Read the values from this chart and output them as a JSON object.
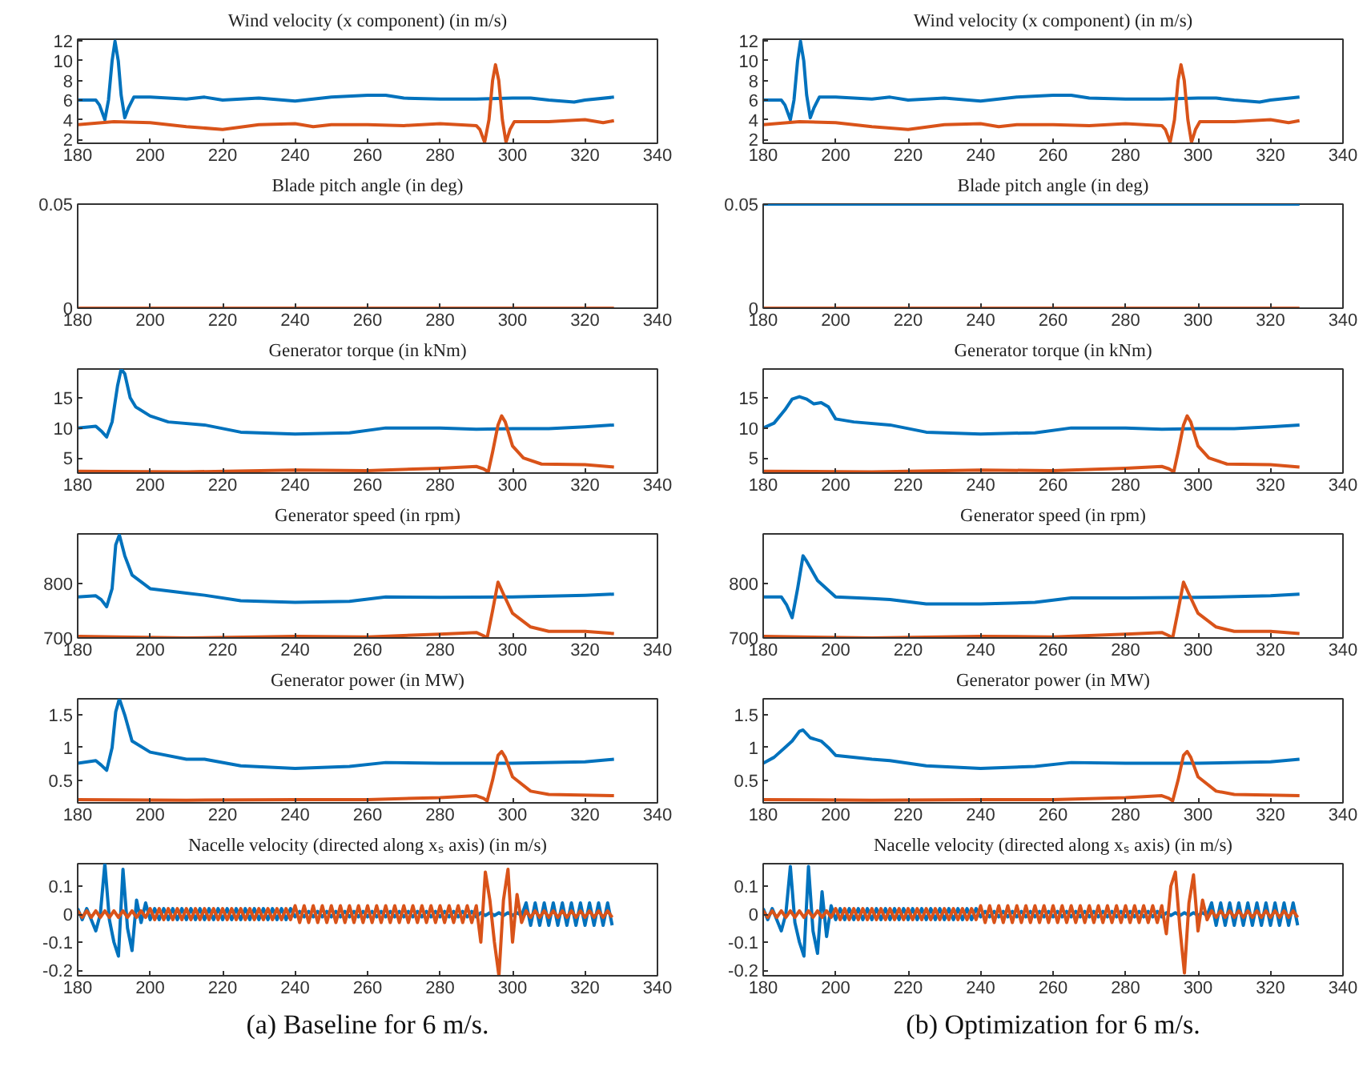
{
  "chart_data": [
    {
      "type": "line",
      "title": "Wind velocity (x component) (in m/s)",
      "xlim": [
        180,
        340
      ],
      "xticks": [
        180,
        200,
        220,
        240,
        260,
        280,
        300,
        320,
        340
      ],
      "ylim": [
        1.6,
        12.2
      ],
      "yticks": [
        2,
        4,
        6,
        8,
        10,
        12
      ],
      "grid": false,
      "series": [
        {
          "color": "#0072bd",
          "x": [
            180,
            185,
            186,
            187.5,
            188.5,
            189.5,
            190.3,
            191.2,
            192,
            193,
            194,
            195.5,
            200,
            210,
            215,
            220,
            230,
            240,
            250,
            260,
            265,
            270,
            280,
            290,
            300,
            305,
            310,
            317,
            320,
            328
          ],
          "values": [
            6.0,
            6.0,
            5.5,
            4.0,
            6.0,
            10.0,
            12.0,
            10.0,
            6.5,
            4.2,
            5.2,
            6.3,
            6.3,
            6.1,
            6.3,
            6.0,
            6.2,
            5.9,
            6.3,
            6.5,
            6.5,
            6.2,
            6.1,
            6.1,
            6.2,
            6.2,
            6.0,
            5.8,
            6.0,
            6.3
          ]
        },
        {
          "color": "#d95319",
          "x": [
            180,
            190,
            200,
            210,
            220,
            230,
            240,
            245,
            250,
            260,
            270,
            280,
            290,
            291,
            292.3,
            293.5,
            294.5,
            295.3,
            296.2,
            297.2,
            298.2,
            299.3,
            300.5,
            310,
            320,
            325,
            328
          ],
          "values": [
            3.5,
            3.8,
            3.7,
            3.3,
            3.0,
            3.5,
            3.6,
            3.3,
            3.5,
            3.5,
            3.4,
            3.6,
            3.4,
            3.0,
            1.7,
            4.0,
            8.0,
            9.6,
            8.0,
            4.0,
            1.7,
            3.0,
            3.8,
            3.8,
            4.0,
            3.7,
            3.9
          ]
        }
      ]
    },
    {
      "type": "line",
      "title": "Wind velocity (x component) (in m/s)",
      "xlim": [
        180,
        340
      ],
      "xticks": [
        180,
        200,
        220,
        240,
        260,
        280,
        300,
        320,
        340
      ],
      "ylim": [
        1.6,
        12.2
      ],
      "yticks": [
        2,
        4,
        6,
        8,
        10,
        12
      ],
      "grid": false,
      "series": [
        {
          "color": "#0072bd",
          "x": [
            180,
            185,
            186,
            187.5,
            188.5,
            189.5,
            190.3,
            191.2,
            192,
            193,
            194,
            195.5,
            200,
            210,
            215,
            220,
            230,
            240,
            250,
            260,
            265,
            270,
            280,
            290,
            300,
            305,
            310,
            317,
            320,
            328
          ],
          "values": [
            6.0,
            6.0,
            5.5,
            4.0,
            6.0,
            10.0,
            12.0,
            10.0,
            6.5,
            4.2,
            5.2,
            6.3,
            6.3,
            6.1,
            6.3,
            6.0,
            6.2,
            5.9,
            6.3,
            6.5,
            6.5,
            6.2,
            6.1,
            6.1,
            6.2,
            6.2,
            6.0,
            5.8,
            6.0,
            6.3
          ]
        },
        {
          "color": "#d95319",
          "x": [
            180,
            190,
            200,
            210,
            220,
            230,
            240,
            245,
            250,
            260,
            270,
            280,
            290,
            291,
            292.3,
            293.5,
            294.5,
            295.3,
            296.2,
            297.2,
            298.2,
            299.3,
            300.5,
            310,
            320,
            325,
            328
          ],
          "values": [
            3.5,
            3.8,
            3.7,
            3.3,
            3.0,
            3.5,
            3.6,
            3.3,
            3.5,
            3.5,
            3.4,
            3.6,
            3.4,
            3.0,
            1.7,
            4.0,
            8.0,
            9.6,
            8.0,
            4.0,
            1.7,
            3.0,
            3.8,
            3.8,
            4.0,
            3.7,
            3.9
          ]
        }
      ]
    },
    {
      "type": "line",
      "title": "Blade pitch angle (in deg)",
      "xlim": [
        180,
        340
      ],
      "xticks": [
        180,
        200,
        220,
        240,
        260,
        280,
        300,
        320,
        340
      ],
      "ylim": [
        0,
        0.05
      ],
      "yticks": [
        0,
        0.05
      ],
      "grid": false,
      "series": [
        {
          "color": "#d95319",
          "x": [
            180,
            328
          ],
          "values": [
            0,
            0
          ]
        }
      ]
    },
    {
      "type": "line",
      "title": "Blade pitch angle (in deg)",
      "xlim": [
        180,
        340
      ],
      "xticks": [
        180,
        200,
        220,
        240,
        260,
        280,
        300,
        320,
        340
      ],
      "ylim": [
        0,
        0.05
      ],
      "yticks": [
        0,
        0.05
      ],
      "grid": false,
      "series": [
        {
          "color": "#0072bd",
          "x": [
            180,
            328
          ],
          "values": [
            0.05,
            0.05
          ]
        },
        {
          "color": "#d95319",
          "x": [
            180,
            328
          ],
          "values": [
            0,
            0
          ]
        }
      ]
    },
    {
      "type": "line",
      "title": "Generator torque (in kNm)",
      "xlim": [
        180,
        340
      ],
      "xticks": [
        180,
        200,
        220,
        240,
        260,
        280,
        300,
        320,
        340
      ],
      "ylim": [
        2.5,
        19.8
      ],
      "yticks": [
        5,
        10,
        15
      ],
      "grid": false,
      "series": [
        {
          "color": "#0072bd",
          "x": [
            180,
            185,
            186.5,
            188,
            189.5,
            191,
            192,
            193,
            194.5,
            196,
            200,
            205,
            215,
            225,
            240,
            255,
            265,
            280,
            290,
            300,
            310,
            320,
            328
          ],
          "values": [
            10,
            10.3,
            9.5,
            8.5,
            11,
            17,
            19.8,
            19,
            15,
            13.5,
            12,
            11,
            10.5,
            9.3,
            9,
            9.2,
            10,
            10,
            9.8,
            9.9,
            9.9,
            10.2,
            10.5
          ]
        },
        {
          "color": "#d95319",
          "x": [
            180,
            210,
            240,
            260,
            280,
            290,
            292,
            293.3,
            294.5,
            296,
            297,
            298,
            300,
            303,
            308,
            320,
            328
          ],
          "values": [
            2.8,
            2.7,
            3,
            2.9,
            3.3,
            3.6,
            3.2,
            2.7,
            6,
            10.5,
            12,
            11,
            7,
            5,
            4,
            3.9,
            3.5
          ]
        }
      ]
    },
    {
      "type": "line",
      "title": "Generator torque (in kNm)",
      "xlim": [
        180,
        340
      ],
      "xticks": [
        180,
        200,
        220,
        240,
        260,
        280,
        300,
        320,
        340
      ],
      "ylim": [
        2.5,
        19.8
      ],
      "yticks": [
        5,
        10,
        15
      ],
      "grid": false,
      "series": [
        {
          "color": "#0072bd",
          "x": [
            180,
            183,
            186,
            188,
            190,
            192,
            194,
            196,
            198,
            200,
            205,
            215,
            225,
            240,
            255,
            265,
            280,
            290,
            300,
            310,
            320,
            328
          ],
          "values": [
            10,
            10.8,
            13,
            14.8,
            15.2,
            14.8,
            14,
            14.2,
            13.5,
            11.5,
            11,
            10.5,
            9.3,
            9,
            9.2,
            10,
            10,
            9.8,
            9.9,
            9.9,
            10.2,
            10.5
          ]
        },
        {
          "color": "#d95319",
          "x": [
            180,
            210,
            240,
            260,
            280,
            290,
            292,
            293.3,
            294.5,
            296,
            297,
            298,
            300,
            303,
            308,
            320,
            328
          ],
          "values": [
            2.8,
            2.7,
            3,
            2.9,
            3.3,
            3.6,
            3.2,
            2.7,
            6,
            10.5,
            12,
            11,
            7,
            5,
            4,
            3.9,
            3.5
          ]
        }
      ]
    },
    {
      "type": "line",
      "title": "Generator speed (in rpm)",
      "xlim": [
        180,
        340
      ],
      "xticks": [
        180,
        200,
        220,
        240,
        260,
        280,
        300,
        320,
        340
      ],
      "ylim": [
        700,
        890
      ],
      "yticks": [
        700,
        800
      ],
      "grid": false,
      "series": [
        {
          "color": "#0072bd",
          "x": [
            180,
            185,
            186.5,
            188,
            189.5,
            190.5,
            191.5,
            193,
            195,
            200,
            210,
            215,
            225,
            240,
            255,
            265,
            280,
            300,
            320,
            328
          ],
          "values": [
            775,
            777,
            770,
            757,
            790,
            870,
            888,
            850,
            815,
            790,
            782,
            778,
            768,
            765,
            767,
            775,
            774,
            775,
            778,
            780
          ]
        },
        {
          "color": "#d95319",
          "x": [
            180,
            210,
            240,
            260,
            280,
            290,
            292,
            293,
            294.5,
            296,
            297.5,
            300,
            305,
            310,
            320,
            328
          ],
          "values": [
            703,
            700,
            703,
            702,
            707,
            710,
            704,
            700,
            750,
            802,
            780,
            745,
            720,
            712,
            712,
            708
          ]
        }
      ]
    },
    {
      "type": "line",
      "title": "Generator speed (in rpm)",
      "xlim": [
        180,
        340
      ],
      "xticks": [
        180,
        200,
        220,
        240,
        260,
        280,
        300,
        320,
        340
      ],
      "ylim": [
        700,
        890
      ],
      "yticks": [
        700,
        800
      ],
      "grid": false,
      "series": [
        {
          "color": "#0072bd",
          "x": [
            180,
            185,
            186.5,
            188,
            189.5,
            191,
            192,
            195,
            200,
            210,
            215,
            225,
            240,
            255,
            265,
            280,
            300,
            320,
            328
          ],
          "values": [
            775,
            775,
            760,
            737,
            790,
            850,
            840,
            805,
            775,
            772,
            770,
            762,
            762,
            765,
            773,
            773,
            774,
            777,
            780
          ]
        },
        {
          "color": "#d95319",
          "x": [
            180,
            210,
            240,
            260,
            280,
            290,
            292,
            293,
            294.5,
            296,
            297.5,
            300,
            305,
            310,
            320,
            328
          ],
          "values": [
            703,
            700,
            703,
            702,
            707,
            710,
            704,
            700,
            750,
            802,
            780,
            745,
            720,
            712,
            712,
            708
          ]
        }
      ]
    },
    {
      "type": "line",
      "title": "Generator power (in MW)",
      "xlim": [
        180,
        340
      ],
      "xticks": [
        180,
        200,
        220,
        240,
        260,
        280,
        300,
        320,
        340
      ],
      "ylim": [
        0.15,
        1.75
      ],
      "yticks": [
        0.5,
        1,
        1.5
      ],
      "grid": false,
      "series": [
        {
          "color": "#0072bd",
          "x": [
            180,
            185,
            186.5,
            188,
            189.5,
            190.5,
            191.5,
            193,
            195,
            200,
            210,
            215,
            225,
            240,
            255,
            265,
            280,
            300,
            320,
            328
          ],
          "values": [
            0.76,
            0.8,
            0.73,
            0.65,
            1.0,
            1.55,
            1.75,
            1.5,
            1.1,
            0.93,
            0.82,
            0.82,
            0.72,
            0.68,
            0.71,
            0.77,
            0.76,
            0.76,
            0.78,
            0.82
          ]
        },
        {
          "color": "#d95319",
          "x": [
            180,
            210,
            240,
            260,
            280,
            290,
            292,
            293,
            294.5,
            296,
            297,
            298,
            300,
            305,
            310,
            328
          ],
          "values": [
            0.2,
            0.19,
            0.2,
            0.2,
            0.23,
            0.26,
            0.22,
            0.18,
            0.5,
            0.88,
            0.94,
            0.85,
            0.55,
            0.33,
            0.28,
            0.26
          ]
        }
      ]
    },
    {
      "type": "line",
      "title": "Generator power (in MW)",
      "xlim": [
        180,
        340
      ],
      "xticks": [
        180,
        200,
        220,
        240,
        260,
        280,
        300,
        320,
        340
      ],
      "ylim": [
        0.15,
        1.75
      ],
      "yticks": [
        0.5,
        1,
        1.5
      ],
      "grid": false,
      "series": [
        {
          "color": "#0072bd",
          "x": [
            180,
            183,
            186,
            188,
            190,
            191,
            193,
            196,
            198,
            200,
            210,
            215,
            225,
            240,
            255,
            265,
            280,
            300,
            320,
            328
          ],
          "values": [
            0.76,
            0.85,
            1.0,
            1.1,
            1.25,
            1.27,
            1.15,
            1.1,
            1.0,
            0.88,
            0.82,
            0.8,
            0.72,
            0.68,
            0.71,
            0.77,
            0.76,
            0.76,
            0.78,
            0.82
          ]
        },
        {
          "color": "#d95319",
          "x": [
            180,
            210,
            240,
            260,
            280,
            290,
            292,
            293,
            294.5,
            296,
            297,
            298,
            300,
            305,
            310,
            328
          ],
          "values": [
            0.2,
            0.19,
            0.2,
            0.2,
            0.23,
            0.26,
            0.22,
            0.18,
            0.5,
            0.88,
            0.94,
            0.85,
            0.55,
            0.33,
            0.28,
            0.26
          ]
        }
      ]
    },
    {
      "type": "line",
      "title": "Nacelle velocity (directed along xₛ axis) (in m/s)",
      "annotations": [
        "(a) Baseline for 6 m/s."
      ],
      "xlim": [
        180,
        340
      ],
      "xticks": [
        180,
        200,
        220,
        240,
        260,
        280,
        300,
        320,
        340
      ],
      "ylim": [
        -0.22,
        0.18
      ],
      "yticks": [
        -0.2,
        -0.1,
        0,
        0.1
      ],
      "grid": false,
      "x": [
        180,
        181.25,
        182.5,
        183.75,
        185,
        186.25,
        187.5,
        188.75,
        190,
        191.25,
        192.5,
        193.75,
        195,
        196.25,
        197.5,
        198.75,
        200,
        201.25,
        202.5,
        203.75,
        205,
        206.25,
        207.5,
        208.75,
        210,
        211.25,
        212.5,
        213.75,
        215,
        216.25,
        217.5,
        218.75,
        220,
        221.25,
        222.5,
        223.75,
        225,
        226.25,
        227.5,
        228.75,
        230,
        231.25,
        232.5,
        233.75,
        235,
        236.25,
        237.5,
        238.75,
        240,
        241.25,
        242.5,
        243.75,
        245,
        246.25,
        247.5,
        248.75,
        250,
        251.25,
        252.5,
        253.75,
        255,
        256.25,
        257.5,
        258.75,
        260,
        261.25,
        262.5,
        263.75,
        265,
        266.25,
        267.5,
        268.75,
        270,
        271.25,
        272.5,
        273.75,
        275,
        276.25,
        277.5,
        278.75,
        280,
        281.25,
        282.5,
        283.75,
        285,
        286.25,
        287.5,
        288.75,
        290,
        291.25,
        292.5,
        293.75,
        295,
        296.25,
        297.5,
        298.75,
        300,
        301.25,
        302.5,
        303.75,
        305,
        306.25,
        307.5,
        308.75,
        310,
        311.25,
        312.5,
        313.75,
        315,
        316.25,
        317.5,
        318.75,
        320,
        321.25,
        322.5,
        323.75,
        325,
        326.25,
        327.5
      ],
      "series": [
        {
          "color": "#0072bd",
          "values": [
            0.02,
            -0.02,
            0.02,
            -0.02,
            -0.06,
            0.0,
            0.18,
            -0.02,
            -0.1,
            -0.15,
            0.16,
            -0.05,
            -0.13,
            0.05,
            -0.03,
            0.04,
            -0.02,
            0.02,
            -0.02,
            0.02,
            -0.02,
            0.02,
            -0.02,
            0.02,
            -0.02,
            0.02,
            -0.02,
            0.02,
            -0.02,
            0.02,
            -0.02,
            0.02,
            -0.02,
            0.02,
            -0.02,
            0.02,
            -0.02,
            0.02,
            -0.02,
            0.02,
            -0.02,
            0.02,
            -0.02,
            0.02,
            -0.02,
            0.02,
            -0.02,
            0.02,
            -0.01,
            0.01,
            -0.01,
            0.01,
            -0.01,
            0.01,
            -0.01,
            0.01,
            -0.01,
            0.01,
            -0.01,
            0.01,
            -0.01,
            0.01,
            -0.01,
            0.01,
            -0.01,
            0.01,
            -0.01,
            0.01,
            -0.01,
            0.01,
            -0.01,
            0.01,
            -0.01,
            0.01,
            -0.01,
            0.01,
            -0.01,
            0.01,
            -0.01,
            0.01,
            -0.01,
            0.01,
            -0.01,
            0.01,
            -0.01,
            0.01,
            -0.01,
            0.01,
            -0.01,
            0.005,
            -0.005,
            0.005,
            -0.005,
            0.005,
            -0.005,
            0.005,
            -0.005,
            0.005,
            -0.005,
            0.04,
            -0.04,
            0.04,
            -0.04,
            0.04,
            -0.04,
            0.04,
            -0.04,
            0.04,
            -0.04,
            0.04,
            -0.04,
            0.04,
            -0.04,
            0.04,
            -0.04,
            0.04,
            -0.04,
            0.04,
            -0.04
          ]
        },
        {
          "color": "#d95319",
          "values": [
            0.012,
            -0.012,
            0.012,
            -0.012,
            0.012,
            -0.012,
            0.012,
            -0.012,
            0.012,
            -0.012,
            0.012,
            -0.012,
            0.012,
            -0.012,
            0.012,
            -0.012,
            0.02,
            -0.02,
            0.02,
            -0.02,
            0.02,
            -0.02,
            0.02,
            -0.02,
            0.02,
            -0.02,
            0.02,
            -0.02,
            0.02,
            -0.02,
            0.02,
            -0.02,
            0.02,
            -0.02,
            0.02,
            -0.02,
            0.02,
            -0.02,
            0.02,
            -0.02,
            0.02,
            -0.02,
            0.02,
            -0.02,
            0.02,
            -0.02,
            0.02,
            -0.02,
            0.03,
            -0.03,
            0.03,
            -0.03,
            0.03,
            -0.03,
            0.03,
            -0.03,
            0.03,
            -0.03,
            0.03,
            -0.03,
            0.03,
            -0.03,
            0.03,
            -0.03,
            0.03,
            -0.03,
            0.03,
            -0.03,
            0.03,
            -0.03,
            0.03,
            -0.03,
            0.03,
            -0.03,
            0.03,
            -0.03,
            0.03,
            -0.03,
            0.03,
            -0.03,
            0.03,
            -0.03,
            0.03,
            -0.03,
            0.03,
            -0.03,
            0.03,
            -0.03,
            0.03,
            -0.1,
            0.15,
            0.05,
            -0.1,
            -0.22,
            0.05,
            0.16,
            -0.1,
            0.07,
            -0.03,
            0.012,
            -0.012,
            0.012,
            -0.012,
            0.012,
            -0.012,
            0.012,
            -0.012,
            0.012,
            -0.012,
            0.012,
            -0.012,
            0.012,
            -0.012,
            0.012,
            -0.012,
            0.012,
            -0.012,
            0.012,
            -0.012
          ]
        }
      ]
    },
    {
      "type": "line",
      "title": "Nacelle velocity (directed along xₛ axis) (in m/s)",
      "annotations": [
        "(b) Optimization for 6 m/s."
      ],
      "xlim": [
        180,
        340
      ],
      "xticks": [
        180,
        200,
        220,
        240,
        260,
        280,
        300,
        320,
        340
      ],
      "ylim": [
        -0.22,
        0.18
      ],
      "yticks": [
        -0.2,
        -0.1,
        0,
        0.1
      ],
      "grid": false,
      "x": [
        180,
        181.25,
        182.5,
        183.75,
        185,
        186.25,
        187.5,
        188.75,
        190,
        191.25,
        192.5,
        193.75,
        195,
        196.25,
        197.5,
        198.75,
        200,
        201.25,
        202.5,
        203.75,
        205,
        206.25,
        207.5,
        208.75,
        210,
        211.25,
        212.5,
        213.75,
        215,
        216.25,
        217.5,
        218.75,
        220,
        221.25,
        222.5,
        223.75,
        225,
        226.25,
        227.5,
        228.75,
        230,
        231.25,
        232.5,
        233.75,
        235,
        236.25,
        237.5,
        238.75,
        240,
        241.25,
        242.5,
        243.75,
        245,
        246.25,
        247.5,
        248.75,
        250,
        251.25,
        252.5,
        253.75,
        255,
        256.25,
        257.5,
        258.75,
        260,
        261.25,
        262.5,
        263.75,
        265,
        266.25,
        267.5,
        268.75,
        270,
        271.25,
        272.5,
        273.75,
        275,
        276.25,
        277.5,
        278.75,
        280,
        281.25,
        282.5,
        283.75,
        285,
        286.25,
        287.5,
        288.75,
        290,
        291.25,
        292.5,
        293.75,
        295,
        296.25,
        297.5,
        298.75,
        300,
        301.25,
        302.5,
        303.75,
        305,
        306.25,
        307.5,
        308.75,
        310,
        311.25,
        312.5,
        313.75,
        315,
        316.25,
        317.5,
        318.75,
        320,
        321.25,
        322.5,
        323.75,
        325,
        326.25,
        327.5
      ],
      "series": [
        {
          "color": "#0072bd",
          "values": [
            0.02,
            -0.02,
            0.02,
            -0.02,
            -0.06,
            0.0,
            0.17,
            -0.03,
            -0.1,
            -0.15,
            0.17,
            -0.06,
            -0.14,
            0.08,
            -0.08,
            0.03,
            -0.02,
            0.02,
            -0.02,
            0.02,
            -0.02,
            0.02,
            -0.02,
            0.02,
            -0.02,
            0.02,
            -0.02,
            0.02,
            -0.02,
            0.02,
            -0.02,
            0.02,
            -0.02,
            0.02,
            -0.02,
            0.02,
            -0.02,
            0.02,
            -0.02,
            0.02,
            -0.02,
            0.02,
            -0.02,
            0.02,
            -0.02,
            0.02,
            -0.02,
            0.02,
            -0.01,
            0.01,
            -0.01,
            0.01,
            -0.01,
            0.01,
            -0.01,
            0.01,
            -0.01,
            0.01,
            -0.01,
            0.01,
            -0.01,
            0.01,
            -0.01,
            0.01,
            -0.01,
            0.01,
            -0.01,
            0.01,
            -0.01,
            0.01,
            -0.01,
            0.01,
            -0.01,
            0.01,
            -0.01,
            0.01,
            -0.01,
            0.01,
            -0.01,
            0.01,
            -0.01,
            0.01,
            -0.01,
            0.01,
            -0.01,
            0.01,
            -0.01,
            0.01,
            -0.01,
            0.005,
            -0.005,
            0.005,
            -0.005,
            0.005,
            -0.005,
            0.005,
            -0.005,
            0.005,
            -0.005,
            0.04,
            -0.04,
            0.04,
            -0.04,
            0.04,
            -0.04,
            0.04,
            -0.04,
            0.04,
            -0.04,
            0.04,
            -0.04,
            0.04,
            -0.04,
            0.04,
            -0.04,
            0.04,
            -0.04,
            0.04,
            -0.04
          ]
        },
        {
          "color": "#d95319",
          "values": [
            0.012,
            -0.012,
            0.012,
            -0.012,
            0.012,
            -0.012,
            0.012,
            -0.012,
            0.012,
            -0.012,
            0.012,
            -0.012,
            0.012,
            -0.012,
            0.012,
            -0.012,
            0.02,
            -0.02,
            0.02,
            -0.02,
            0.02,
            -0.02,
            0.02,
            -0.02,
            0.02,
            -0.02,
            0.02,
            -0.02,
            0.02,
            -0.02,
            0.02,
            -0.02,
            0.02,
            -0.02,
            0.02,
            -0.02,
            0.02,
            -0.02,
            0.02,
            -0.02,
            0.02,
            -0.02,
            0.02,
            -0.02,
            0.02,
            -0.02,
            0.02,
            -0.02,
            0.03,
            -0.03,
            0.03,
            -0.03,
            0.03,
            -0.03,
            0.03,
            -0.03,
            0.03,
            -0.03,
            0.03,
            -0.03,
            0.03,
            -0.03,
            0.03,
            -0.03,
            0.03,
            -0.03,
            0.03,
            -0.03,
            0.03,
            -0.03,
            0.03,
            -0.03,
            0.03,
            -0.03,
            0.03,
            -0.03,
            0.03,
            -0.03,
            0.03,
            -0.03,
            0.03,
            -0.03,
            0.03,
            -0.03,
            0.03,
            -0.03,
            0.03,
            -0.03,
            0.03,
            -0.07,
            0.1,
            0.15,
            -0.05,
            -0.21,
            0.04,
            0.14,
            -0.06,
            0.05,
            -0.02,
            0.012,
            -0.012,
            0.012,
            -0.012,
            0.012,
            -0.012,
            0.012,
            -0.012,
            0.012,
            -0.012,
            0.012,
            -0.012,
            0.012,
            -0.012,
            0.012,
            -0.012,
            0.012,
            -0.012,
            0.012,
            -0.012
          ]
        }
      ]
    }
  ]
}
